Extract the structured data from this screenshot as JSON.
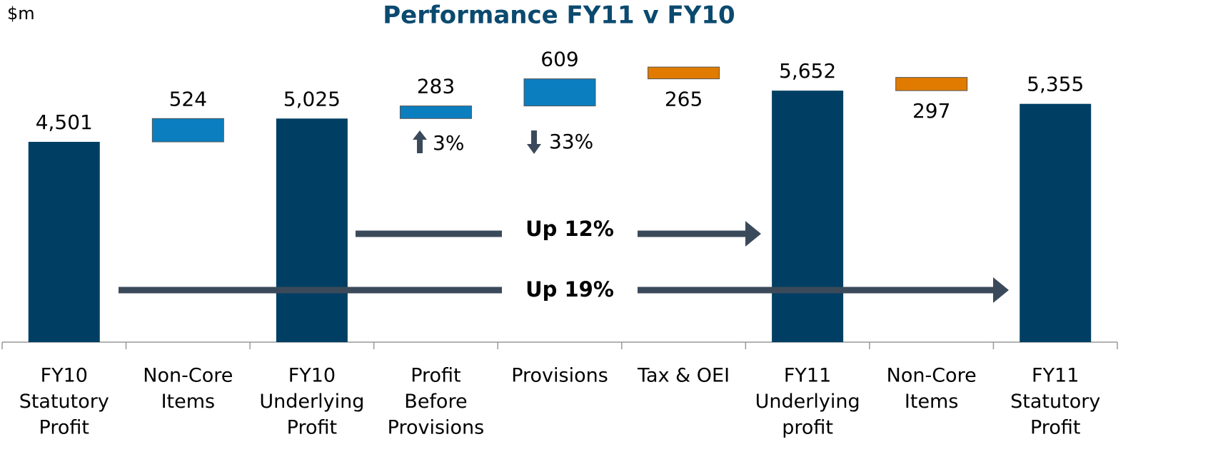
{
  "chart_data": {
    "type": "waterfall",
    "title": "Performance FY11 v FY10",
    "unit_label": "$m",
    "categories": [
      [
        "FY10",
        "Statutory",
        "Profit"
      ],
      [
        "Non-Core",
        "Items"
      ],
      [
        "FY10",
        "Underlying",
        "Profit"
      ],
      [
        "Profit",
        "Before",
        "Provisions"
      ],
      [
        "Provisions"
      ],
      [
        "Tax & OEI"
      ],
      [
        "FY11",
        "Underlying",
        "profit"
      ],
      [
        "Non-Core",
        "Items"
      ],
      [
        "FY11",
        "Statutory",
        "Profit"
      ]
    ],
    "values": [
      4501,
      524,
      5025,
      283,
      609,
      265,
      5652,
      297,
      5355
    ],
    "value_labels": [
      "4,501",
      "524",
      "5,025",
      "283",
      "609",
      "265",
      "5,652",
      "297",
      "5,355"
    ],
    "measures": [
      "total",
      "increase",
      "total",
      "increase",
      "increase",
      "decrease",
      "total",
      "decrease",
      "total"
    ],
    "colors": {
      "total": "#003f63",
      "increase": "#0a7ebf",
      "decrease": "#e07b00"
    },
    "ylim": [
      0,
      7000
    ],
    "annotations": [
      "3%",
      "33%",
      "Up 12%",
      "Up 19%"
    ]
  }
}
